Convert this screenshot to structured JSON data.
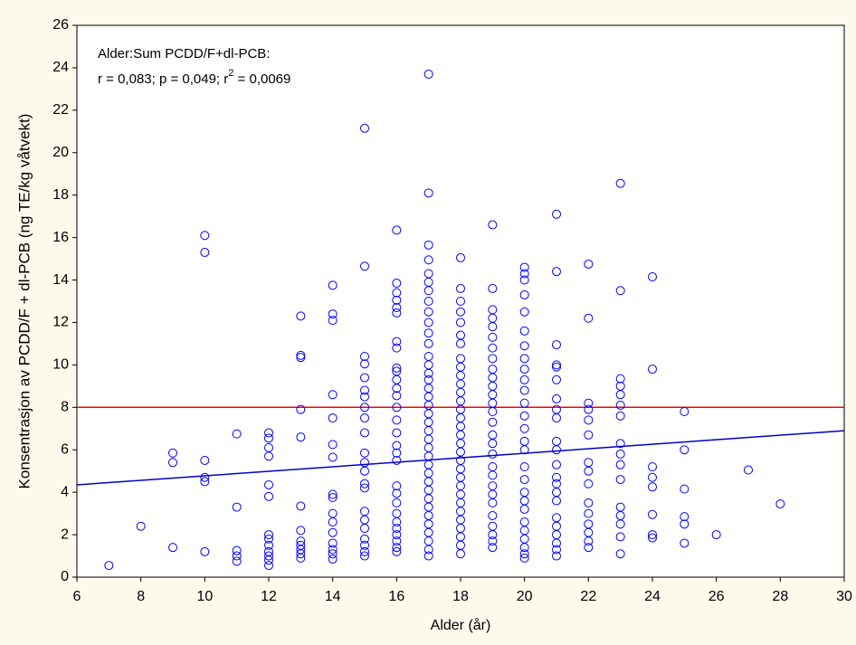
{
  "chart_data": {
    "type": "scatter",
    "x_label": "Alder (år)",
    "y_label": "Konsentrasjon av PCDD/F + dl-PCB (ng TE/kg våtvekt)",
    "annotation": {
      "line1": "Alder:Sum PCDD/F+dl-PCB:",
      "line2_start": "r = 0,083; p = 0,049; r",
      "line2_sup": "2",
      "line2_end": " = 0,0069"
    },
    "xlim": [
      6,
      30
    ],
    "xticks": [
      6,
      8,
      10,
      12,
      14,
      16,
      18,
      20,
      22,
      24,
      26,
      28,
      30
    ],
    "ylim": [
      0,
      26
    ],
    "yticks": [
      0,
      2,
      4,
      6,
      8,
      10,
      12,
      14,
      16,
      18,
      20,
      22,
      24,
      26
    ],
    "color": "#0000ff",
    "reference_line": {
      "value": 8,
      "color": "#ff0000"
    },
    "fit_line": {
      "x": [
        6,
        30
      ],
      "values": [
        4.35,
        6.9
      ],
      "color": "#0000cc"
    },
    "points": [
      [
        7,
        0.55
      ],
      [
        8,
        2.4
      ],
      [
        9,
        5.85
      ],
      [
        9,
        5.4
      ],
      [
        9,
        1.4
      ],
      [
        10,
        16.1
      ],
      [
        10,
        15.3
      ],
      [
        10,
        5.5
      ],
      [
        10,
        4.7
      ],
      [
        10,
        4.5
      ],
      [
        10,
        1.2
      ],
      [
        11,
        6.75
      ],
      [
        11,
        3.3
      ],
      [
        11,
        1.25
      ],
      [
        11,
        1.0
      ],
      [
        11,
        0.75
      ],
      [
        12,
        6.8
      ],
      [
        12,
        6.55
      ],
      [
        12,
        6.1
      ],
      [
        12,
        5.7
      ],
      [
        12,
        4.35
      ],
      [
        12,
        3.8
      ],
      [
        12,
        2.0
      ],
      [
        12,
        1.8
      ],
      [
        12,
        1.5
      ],
      [
        12,
        1.2
      ],
      [
        12,
        1.0
      ],
      [
        12,
        0.8
      ],
      [
        12,
        0.55
      ],
      [
        13,
        12.3
      ],
      [
        13,
        10.45
      ],
      [
        13,
        10.35
      ],
      [
        13,
        7.9
      ],
      [
        13,
        6.6
      ],
      [
        13,
        3.35
      ],
      [
        13,
        2.2
      ],
      [
        13,
        1.7
      ],
      [
        13,
        1.5
      ],
      [
        13,
        1.3
      ],
      [
        13,
        1.1
      ],
      [
        13,
        0.9
      ],
      [
        14,
        13.75
      ],
      [
        14,
        12.4
      ],
      [
        14,
        12.1
      ],
      [
        14,
        8.6
      ],
      [
        14,
        7.5
      ],
      [
        14,
        6.25
      ],
      [
        14,
        5.65
      ],
      [
        14,
        3.9
      ],
      [
        14,
        3.75
      ],
      [
        14,
        3.0
      ],
      [
        14,
        2.6
      ],
      [
        14,
        2.1
      ],
      [
        14,
        1.6
      ],
      [
        14,
        1.3
      ],
      [
        14,
        1.1
      ],
      [
        14,
        0.85
      ],
      [
        15,
        21.15
      ],
      [
        15,
        14.65
      ],
      [
        15,
        10.4
      ],
      [
        15,
        10.05
      ],
      [
        15,
        9.4
      ],
      [
        15,
        8.8
      ],
      [
        15,
        8.5
      ],
      [
        15,
        8.0
      ],
      [
        15,
        7.5
      ],
      [
        15,
        6.8
      ],
      [
        15,
        5.85
      ],
      [
        15,
        5.4
      ],
      [
        15,
        5.0
      ],
      [
        15,
        4.4
      ],
      [
        15,
        4.2
      ],
      [
        15,
        3.1
      ],
      [
        15,
        2.7
      ],
      [
        15,
        2.3
      ],
      [
        15,
        1.8
      ],
      [
        15,
        1.5
      ],
      [
        15,
        1.2
      ],
      [
        15,
        1.0
      ],
      [
        16,
        16.35
      ],
      [
        16,
        13.85
      ],
      [
        16,
        13.4
      ],
      [
        16,
        13.05
      ],
      [
        16,
        12.7
      ],
      [
        16,
        12.45
      ],
      [
        16,
        11.1
      ],
      [
        16,
        10.8
      ],
      [
        16,
        9.85
      ],
      [
        16,
        9.7
      ],
      [
        16,
        9.3
      ],
      [
        16,
        8.9
      ],
      [
        16,
        8.55
      ],
      [
        16,
        8.0
      ],
      [
        16,
        7.4
      ],
      [
        16,
        6.8
      ],
      [
        16,
        6.2
      ],
      [
        16,
        5.85
      ],
      [
        16,
        5.5
      ],
      [
        16,
        4.3
      ],
      [
        16,
        3.95
      ],
      [
        16,
        3.5
      ],
      [
        16,
        3.0
      ],
      [
        16,
        2.6
      ],
      [
        16,
        2.3
      ],
      [
        16,
        2.0
      ],
      [
        16,
        1.7
      ],
      [
        16,
        1.4
      ],
      [
        16,
        1.2
      ],
      [
        17,
        23.7
      ],
      [
        17,
        18.1
      ],
      [
        17,
        15.65
      ],
      [
        17,
        14.95
      ],
      [
        17,
        14.3
      ],
      [
        17,
        13.9
      ],
      [
        17,
        13.5
      ],
      [
        17,
        13.0
      ],
      [
        17,
        12.5
      ],
      [
        17,
        12.0
      ],
      [
        17,
        11.5
      ],
      [
        17,
        11.0
      ],
      [
        17,
        10.4
      ],
      [
        17,
        10.0
      ],
      [
        17,
        9.6
      ],
      [
        17,
        9.3
      ],
      [
        17,
        8.9
      ],
      [
        17,
        8.5
      ],
      [
        17,
        8.1
      ],
      [
        17,
        7.7
      ],
      [
        17,
        7.3
      ],
      [
        17,
        6.9
      ],
      [
        17,
        6.5
      ],
      [
        17,
        6.1
      ],
      [
        17,
        5.7
      ],
      [
        17,
        5.3
      ],
      [
        17,
        4.9
      ],
      [
        17,
        4.5
      ],
      [
        17,
        4.1
      ],
      [
        17,
        3.7
      ],
      [
        17,
        3.3
      ],
      [
        17,
        2.9
      ],
      [
        17,
        2.5
      ],
      [
        17,
        2.1
      ],
      [
        17,
        1.7
      ],
      [
        17,
        1.3
      ],
      [
        17,
        1.0
      ],
      [
        18,
        15.05
      ],
      [
        18,
        13.6
      ],
      [
        18,
        13.0
      ],
      [
        18,
        12.5
      ],
      [
        18,
        12.0
      ],
      [
        18,
        11.4
      ],
      [
        18,
        11.0
      ],
      [
        18,
        10.3
      ],
      [
        18,
        9.9
      ],
      [
        18,
        9.5
      ],
      [
        18,
        9.1
      ],
      [
        18,
        8.7
      ],
      [
        18,
        8.3
      ],
      [
        18,
        7.9
      ],
      [
        18,
        7.5
      ],
      [
        18,
        7.1
      ],
      [
        18,
        6.7
      ],
      [
        18,
        6.3
      ],
      [
        18,
        5.9
      ],
      [
        18,
        5.5
      ],
      [
        18,
        5.1
      ],
      [
        18,
        4.7
      ],
      [
        18,
        4.3
      ],
      [
        18,
        3.9
      ],
      [
        18,
        3.5
      ],
      [
        18,
        3.1
      ],
      [
        18,
        2.7
      ],
      [
        18,
        2.3
      ],
      [
        18,
        1.9
      ],
      [
        18,
        1.5
      ],
      [
        18,
        1.1
      ],
      [
        19,
        16.6
      ],
      [
        19,
        13.6
      ],
      [
        19,
        12.6
      ],
      [
        19,
        12.2
      ],
      [
        19,
        11.8
      ],
      [
        19,
        11.3
      ],
      [
        19,
        10.8
      ],
      [
        19,
        10.3
      ],
      [
        19,
        9.8
      ],
      [
        19,
        9.4
      ],
      [
        19,
        9.0
      ],
      [
        19,
        8.6
      ],
      [
        19,
        8.2
      ],
      [
        19,
        7.8
      ],
      [
        19,
        7.3
      ],
      [
        19,
        6.7
      ],
      [
        19,
        6.3
      ],
      [
        19,
        5.8
      ],
      [
        19,
        5.2
      ],
      [
        19,
        4.8
      ],
      [
        19,
        4.3
      ],
      [
        19,
        3.9
      ],
      [
        19,
        3.5
      ],
      [
        19,
        2.9
      ],
      [
        19,
        2.4
      ],
      [
        19,
        2.0
      ],
      [
        19,
        1.7
      ],
      [
        19,
        1.4
      ],
      [
        20,
        14.6
      ],
      [
        20,
        14.3
      ],
      [
        20,
        14.0
      ],
      [
        20,
        13.3
      ],
      [
        20,
        12.5
      ],
      [
        20,
        11.6
      ],
      [
        20,
        10.9
      ],
      [
        20,
        10.3
      ],
      [
        20,
        9.8
      ],
      [
        20,
        9.3
      ],
      [
        20,
        8.8
      ],
      [
        20,
        8.2
      ],
      [
        20,
        7.6
      ],
      [
        20,
        7.0
      ],
      [
        20,
        6.4
      ],
      [
        20,
        6.0
      ],
      [
        20,
        5.2
      ],
      [
        20,
        4.6
      ],
      [
        20,
        4.0
      ],
      [
        20,
        3.6
      ],
      [
        20,
        3.2
      ],
      [
        20,
        2.6
      ],
      [
        20,
        2.2
      ],
      [
        20,
        1.8
      ],
      [
        20,
        1.4
      ],
      [
        20,
        1.1
      ],
      [
        20,
        0.9
      ],
      [
        21,
        17.1
      ],
      [
        21,
        14.4
      ],
      [
        21,
        10.95
      ],
      [
        21,
        10.0
      ],
      [
        21,
        9.9
      ],
      [
        21,
        9.3
      ],
      [
        21,
        8.4
      ],
      [
        21,
        7.9
      ],
      [
        21,
        7.5
      ],
      [
        21,
        6.4
      ],
      [
        21,
        6.0
      ],
      [
        21,
        5.3
      ],
      [
        21,
        4.7
      ],
      [
        21,
        4.4
      ],
      [
        21,
        4.0
      ],
      [
        21,
        3.6
      ],
      [
        21,
        2.8
      ],
      [
        21,
        2.4
      ],
      [
        21,
        2.0
      ],
      [
        21,
        1.6
      ],
      [
        21,
        1.3
      ],
      [
        21,
        1.0
      ],
      [
        22,
        14.75
      ],
      [
        22,
        12.2
      ],
      [
        22,
        8.2
      ],
      [
        22,
        7.9
      ],
      [
        22,
        7.4
      ],
      [
        22,
        6.7
      ],
      [
        22,
        5.4
      ],
      [
        22,
        5.0
      ],
      [
        22,
        4.4
      ],
      [
        22,
        3.5
      ],
      [
        22,
        3.0
      ],
      [
        22,
        2.5
      ],
      [
        22,
        2.1
      ],
      [
        22,
        1.7
      ],
      [
        22,
        1.4
      ],
      [
        23,
        18.55
      ],
      [
        23,
        13.5
      ],
      [
        23,
        9.35
      ],
      [
        23,
        9.0
      ],
      [
        23,
        8.6
      ],
      [
        23,
        8.1
      ],
      [
        23,
        7.6
      ],
      [
        23,
        6.3
      ],
      [
        23,
        5.8
      ],
      [
        23,
        5.3
      ],
      [
        23,
        4.6
      ],
      [
        23,
        3.3
      ],
      [
        23,
        2.9
      ],
      [
        23,
        2.5
      ],
      [
        23,
        1.9
      ],
      [
        23,
        1.1
      ],
      [
        24,
        14.15
      ],
      [
        24,
        9.8
      ],
      [
        24,
        5.2
      ],
      [
        24,
        4.7
      ],
      [
        24,
        4.25
      ],
      [
        24,
        2.95
      ],
      [
        24,
        2.0
      ],
      [
        24,
        1.85
      ],
      [
        25,
        7.8
      ],
      [
        25,
        6.0
      ],
      [
        25,
        4.15
      ],
      [
        25,
        2.85
      ],
      [
        25,
        2.5
      ],
      [
        25,
        1.6
      ],
      [
        26,
        2.0
      ],
      [
        27,
        5.05
      ],
      [
        28,
        3.45
      ]
    ]
  }
}
